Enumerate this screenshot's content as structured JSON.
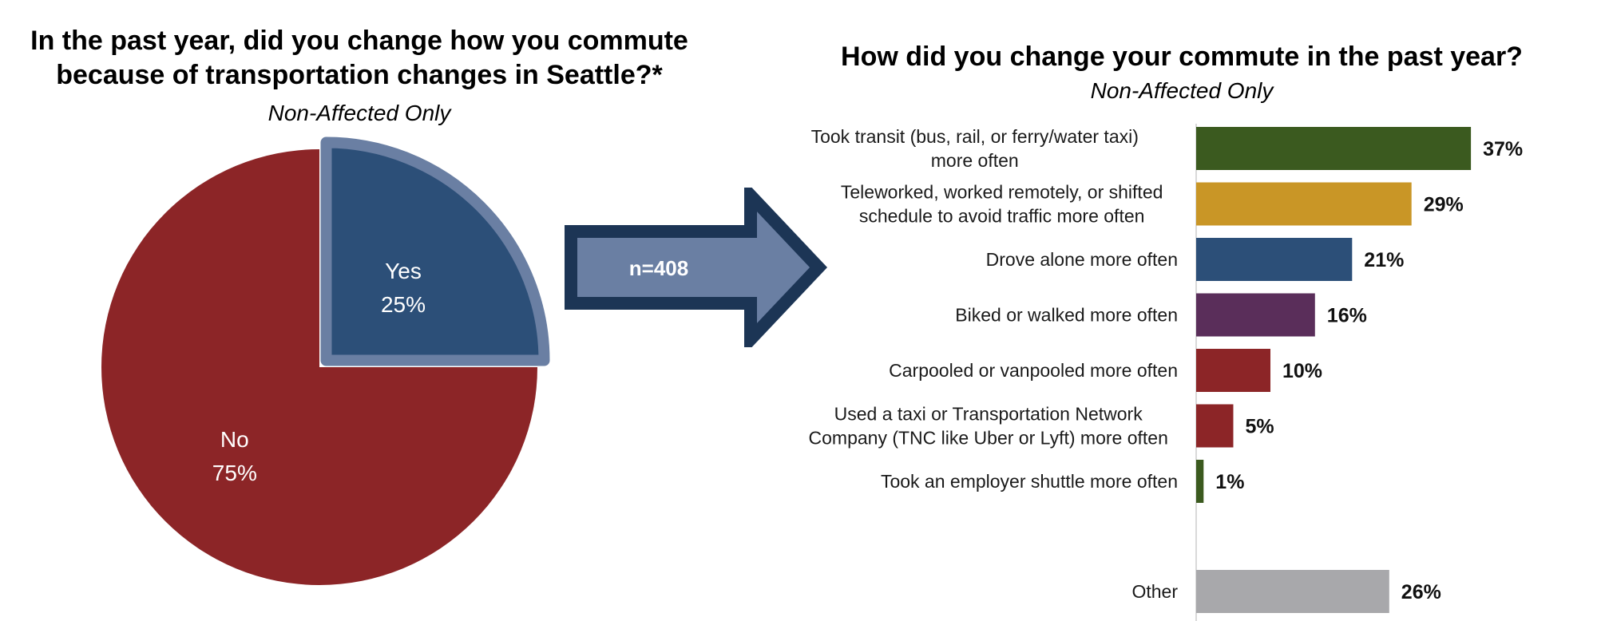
{
  "pie_title_lines": [
    "In the past year, did you change how you commute",
    "because of transportation changes in Seattle?*"
  ],
  "pie_subtitle": "Non-Affected Only",
  "bar_title": "How did you change your commute in the past year?",
  "bar_subtitle": "Non-Affected Only",
  "arrow_label": "n=408",
  "colors": {
    "no": "#8c2527",
    "yes": "#2c4f78",
    "yes_outline": "#6a7fa3",
    "arrow_fill": "#6a7fa3",
    "arrow_border": "#1c3555"
  },
  "chart_data": [
    {
      "type": "pie",
      "title": "In the past year, did you change how you commute because of transportation changes in Seattle?*",
      "subtitle": "Non-Affected Only",
      "slices": [
        {
          "label": "Yes",
          "value": 25,
          "value_label": "25%",
          "color": "#2c4f78",
          "exploded": true
        },
        {
          "label": "No",
          "value": 75,
          "value_label": "75%",
          "color": "#8c2527"
        }
      ]
    },
    {
      "type": "bar",
      "orientation": "horizontal",
      "title": "How did you change your commute in the past year?",
      "subtitle": "Non-Affected Only",
      "xlim": [
        0,
        40
      ],
      "bars": [
        {
          "label_lines": [
            "Took transit (bus, rail, or ferry/water taxi)",
            "more often"
          ],
          "value": 37,
          "value_label": "37%",
          "color": "#3b5a1f"
        },
        {
          "label_lines": [
            "Teleworked, worked remotely, or shifted",
            "schedule to avoid traffic more often"
          ],
          "value": 29,
          "value_label": "29%",
          "color": "#c99626"
        },
        {
          "label_lines": [
            "Drove alone more often"
          ],
          "value": 21,
          "value_label": "21%",
          "color": "#2c4f78"
        },
        {
          "label_lines": [
            "Biked or walked more often"
          ],
          "value": 16,
          "value_label": "16%",
          "color": "#5a2e5a"
        },
        {
          "label_lines": [
            "Carpooled or vanpooled more often"
          ],
          "value": 10,
          "value_label": "10%",
          "color": "#8c2527"
        },
        {
          "label_lines": [
            "Used a taxi or Transportation Network",
            "Company (TNC like Uber or Lyft) more often"
          ],
          "value": 5,
          "value_label": "5%",
          "color": "#8c2527"
        },
        {
          "label_lines": [
            "Took an employer shuttle more often"
          ],
          "value": 1,
          "value_label": "1%",
          "color": "#3b5a1f"
        },
        {
          "label_lines": [
            "Other"
          ],
          "value": 26,
          "value_label": "26%",
          "color": "#a8a8ab",
          "separated": true
        }
      ]
    }
  ]
}
